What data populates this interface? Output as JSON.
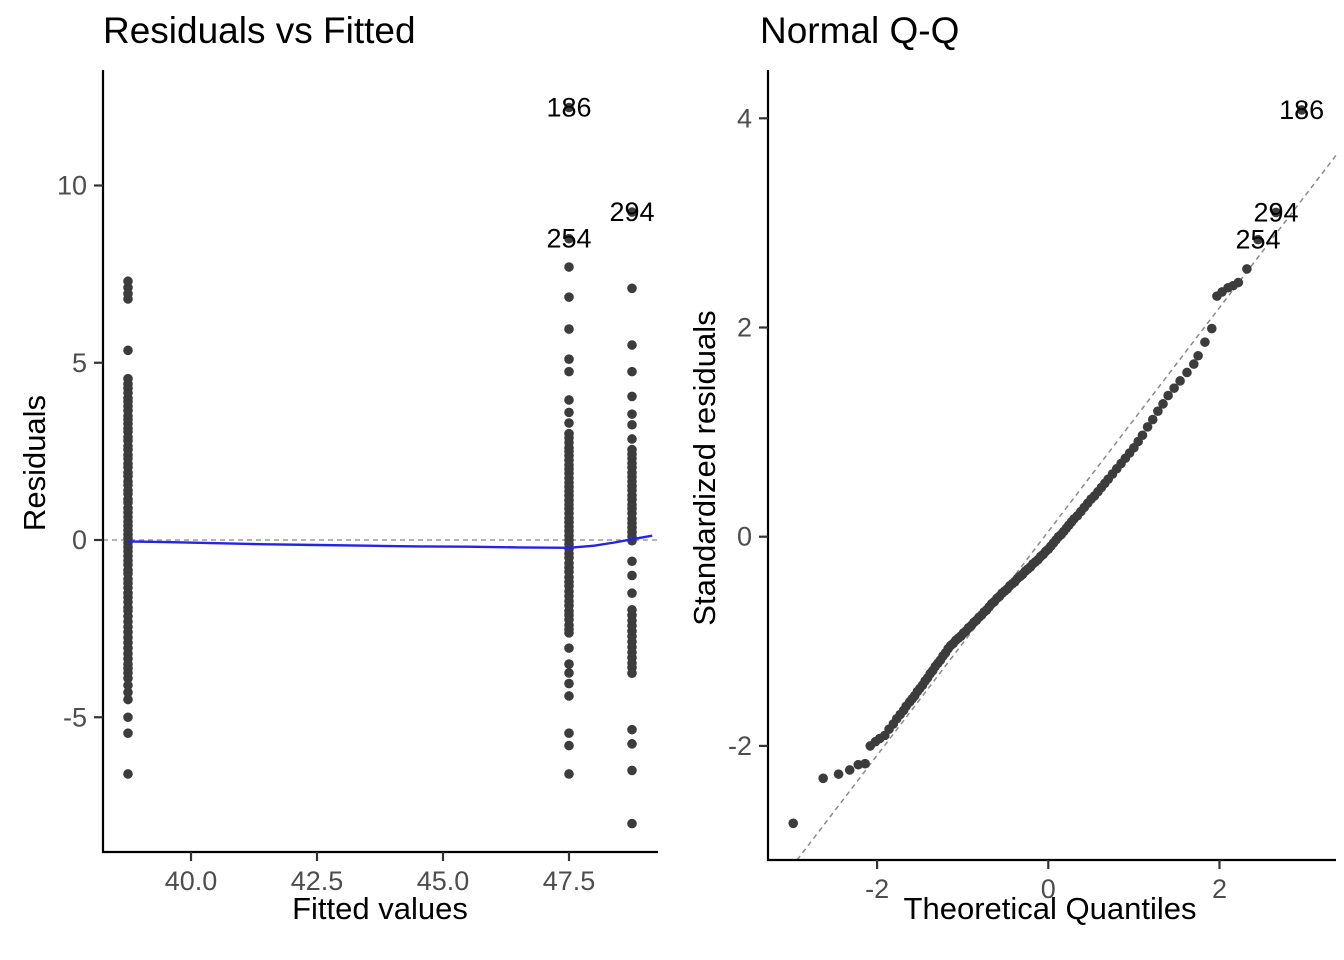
{
  "figure": {
    "background": "#ffffff"
  },
  "colors": {
    "point": "#3c3c3c",
    "smooth_line": "#2424e8",
    "zero_line": "#9b9b9b",
    "ref_line": "#8a8a8a",
    "axis_line": "#000000",
    "tick_label": "#4d4d4d",
    "title": "#000000"
  },
  "chart_data": [
    {
      "type": "scatter",
      "title": "Residuals vs Fitted",
      "xlabel": "Fitted values",
      "ylabel": "Residuals",
      "xlim": [
        38.25,
        49.3
      ],
      "ylim": [
        -8.8,
        13.25
      ],
      "grid": false,
      "legend": "none",
      "x_ticks": [
        {
          "label": "40.0",
          "value": 40.0
        },
        {
          "label": "42.5",
          "value": 42.5
        },
        {
          "label": "45.0",
          "value": 45.0
        },
        {
          "label": "47.5",
          "value": 47.5
        }
      ],
      "y_ticks": [
        {
          "label": "10",
          "value": 10
        },
        {
          "label": "5",
          "value": 5
        },
        {
          "label": "0",
          "value": 0
        },
        {
          "label": "-5",
          "value": -5
        }
      ],
      "zero_line": 0,
      "smooth_line": [
        [
          38.75,
          -0.04
        ],
        [
          39.5,
          -0.06
        ],
        [
          40.5,
          -0.09
        ],
        [
          41.5,
          -0.12
        ],
        [
          42.5,
          -0.14
        ],
        [
          43.5,
          -0.16
        ],
        [
          44.5,
          -0.18
        ],
        [
          45.5,
          -0.19
        ],
        [
          46.5,
          -0.21
        ],
        [
          47.5,
          -0.22
        ],
        [
          48.0,
          -0.16
        ],
        [
          48.4,
          -0.07
        ],
        [
          48.75,
          0.02
        ],
        [
          49.15,
          0.12
        ]
      ],
      "series": [
        {
          "name": "fitted-38.75",
          "fitted": 38.75,
          "residuals": [
            7.3,
            7.12,
            6.95,
            6.8,
            5.35,
            4.55,
            4.4,
            4.28,
            4.15,
            4.0,
            3.9,
            3.78,
            3.65,
            3.5,
            3.4,
            3.28,
            3.15,
            3.05,
            2.9,
            2.8,
            2.65,
            2.55,
            2.4,
            2.3,
            2.15,
            2.05,
            1.9,
            1.8,
            1.65,
            1.55,
            1.4,
            1.3,
            1.15,
            1.05,
            0.9,
            0.78,
            0.65,
            0.52,
            0.4,
            0.28,
            0.15,
            0.05,
            -0.08,
            -0.2,
            -0.32,
            -0.45,
            -0.58,
            -0.7,
            -0.85,
            -0.95,
            -1.1,
            -1.22,
            -1.35,
            -1.5,
            -1.62,
            -1.75,
            -1.9,
            -2.0,
            -2.15,
            -2.3,
            -2.45,
            -2.6,
            -2.75,
            -2.9,
            -3.05,
            -3.2,
            -3.35,
            -3.5,
            -3.62,
            -3.75,
            -3.9,
            -4.1,
            -4.3,
            -4.5,
            -5.0,
            -5.45,
            -6.6
          ]
        },
        {
          "name": "fitted-47.5",
          "fitted": 47.5,
          "residuals": [
            12.2,
            8.5,
            7.7,
            6.85,
            5.95,
            5.1,
            4.75,
            3.95,
            3.6,
            3.3,
            3.0,
            2.88,
            2.75,
            2.6,
            2.5,
            2.38,
            2.25,
            2.12,
            2.0,
            1.88,
            1.75,
            1.62,
            1.5,
            1.38,
            1.25,
            1.12,
            1.0,
            0.88,
            0.75,
            0.62,
            0.5,
            0.38,
            0.25,
            0.12,
            0.0,
            -0.12,
            -0.25,
            -0.38,
            -0.5,
            -0.65,
            -0.78,
            -0.9,
            -1.05,
            -1.18,
            -1.3,
            -1.45,
            -1.58,
            -1.72,
            -1.85,
            -2.0,
            -2.12,
            -2.25,
            -2.4,
            -2.52,
            -2.62,
            -3.05,
            -3.5,
            -3.75,
            -4.05,
            -4.4,
            -5.45,
            -5.8,
            -6.6
          ]
        },
        {
          "name": "fitted-48.75",
          "fitted": 48.75,
          "residuals": [
            9.25,
            7.1,
            5.5,
            4.75,
            4.05,
            3.55,
            3.25,
            2.85,
            2.55,
            2.42,
            2.3,
            2.16,
            2.04,
            1.9,
            1.78,
            1.65,
            1.52,
            1.4,
            1.26,
            1.14,
            1.0,
            0.88,
            0.75,
            0.6,
            0.48,
            0.35,
            0.22,
            0.1,
            -0.02,
            -0.6,
            -1.0,
            -1.5,
            -1.97,
            -2.12,
            -2.27,
            -2.42,
            -2.57,
            -2.72,
            -2.87,
            -3.02,
            -3.17,
            -3.32,
            -3.47,
            -3.6,
            -3.76,
            -5.35,
            -5.75,
            -6.5,
            -8.0
          ]
        }
      ],
      "point_labels": [
        {
          "text": "186",
          "x": 47.5,
          "y": 12.2
        },
        {
          "text": "254",
          "x": 47.5,
          "y": 8.5
        },
        {
          "text": "294",
          "x": 48.75,
          "y": 9.25
        }
      ]
    },
    {
      "type": "scatter",
      "title": "Normal Q-Q",
      "xlabel": "Theoretical Quantiles",
      "ylabel": "Standardized residuals",
      "xlim": [
        -3.27,
        3.36
      ],
      "ylim": [
        -3.09,
        4.46
      ],
      "grid": false,
      "legend": "none",
      "x_ticks": [
        {
          "label": "-2",
          "value": -2
        },
        {
          "label": "0",
          "value": 0
        },
        {
          "label": "2",
          "value": 2
        }
      ],
      "y_ticks": [
        {
          "label": "4",
          "value": 4
        },
        {
          "label": "2",
          "value": 2
        },
        {
          "label": "0",
          "value": 0
        },
        {
          "label": "-2",
          "value": -2
        }
      ],
      "ref_line": {
        "slope": 1.07,
        "intercept": 0.05,
        "style": "dashed"
      },
      "points": [
        [
          -2.98,
          -2.74
        ],
        [
          -2.63,
          -2.31
        ],
        [
          -2.45,
          -2.27
        ],
        [
          -2.32,
          -2.23
        ],
        [
          -2.22,
          -2.18
        ],
        [
          -2.14,
          -2.17
        ],
        [
          -2.08,
          -2.0
        ],
        [
          -2.02,
          -1.96
        ],
        [
          -1.97,
          -1.93
        ],
        [
          -1.91,
          -1.9
        ],
        [
          -1.86,
          -1.84
        ],
        [
          -1.81,
          -1.79
        ],
        [
          -1.77,
          -1.74
        ],
        [
          -1.73,
          -1.7
        ],
        [
          -1.69,
          -1.66
        ],
        [
          -1.66,
          -1.62
        ],
        [
          -1.62,
          -1.58
        ],
        [
          -1.59,
          -1.55
        ],
        [
          -1.56,
          -1.52
        ],
        [
          -1.53,
          -1.48
        ],
        [
          -1.5,
          -1.45
        ],
        [
          -1.47,
          -1.42
        ],
        [
          -1.44,
          -1.38
        ],
        [
          -1.41,
          -1.35
        ],
        [
          -1.38,
          -1.31
        ],
        [
          -1.35,
          -1.28
        ],
        [
          -1.32,
          -1.24
        ],
        [
          -1.29,
          -1.21
        ],
        [
          -1.26,
          -1.18
        ],
        [
          -1.23,
          -1.14
        ],
        [
          -1.2,
          -1.11
        ],
        [
          -1.17,
          -1.07
        ],
        [
          -1.14,
          -1.04
        ],
        [
          -1.11,
          -1.02
        ],
        [
          -1.08,
          -0.99
        ],
        [
          -1.05,
          -0.97
        ],
        [
          -1.02,
          -0.95
        ],
        [
          -0.99,
          -0.92
        ],
        [
          -0.96,
          -0.9
        ],
        [
          -0.93,
          -0.87
        ],
        [
          -0.9,
          -0.85
        ],
        [
          -0.87,
          -0.82
        ],
        [
          -0.84,
          -0.8
        ],
        [
          -0.81,
          -0.77
        ],
        [
          -0.78,
          -0.75
        ],
        [
          -0.75,
          -0.72
        ],
        [
          -0.72,
          -0.7
        ],
        [
          -0.69,
          -0.67
        ],
        [
          -0.66,
          -0.64
        ],
        [
          -0.63,
          -0.62
        ],
        [
          -0.6,
          -0.59
        ],
        [
          -0.57,
          -0.57
        ],
        [
          -0.54,
          -0.54
        ],
        [
          -0.51,
          -0.52
        ],
        [
          -0.48,
          -0.5
        ],
        [
          -0.45,
          -0.47
        ],
        [
          -0.42,
          -0.45
        ],
        [
          -0.39,
          -0.43
        ],
        [
          -0.36,
          -0.4
        ],
        [
          -0.33,
          -0.38
        ],
        [
          -0.3,
          -0.36
        ],
        [
          -0.27,
          -0.33
        ],
        [
          -0.24,
          -0.31
        ],
        [
          -0.21,
          -0.29
        ],
        [
          -0.18,
          -0.26
        ],
        [
          -0.15,
          -0.24
        ],
        [
          -0.12,
          -0.22
        ],
        [
          -0.09,
          -0.19
        ],
        [
          -0.06,
          -0.17
        ],
        [
          -0.03,
          -0.14
        ],
        [
          0.0,
          -0.12
        ],
        [
          0.03,
          -0.09
        ],
        [
          0.06,
          -0.06
        ],
        [
          0.09,
          -0.03
        ],
        [
          0.12,
          0.0
        ],
        [
          0.15,
          0.02
        ],
        [
          0.18,
          0.05
        ],
        [
          0.21,
          0.08
        ],
        [
          0.24,
          0.11
        ],
        [
          0.27,
          0.14
        ],
        [
          0.3,
          0.17
        ],
        [
          0.34,
          0.2
        ],
        [
          0.38,
          0.24
        ],
        [
          0.42,
          0.28
        ],
        [
          0.46,
          0.32
        ],
        [
          0.5,
          0.36
        ],
        [
          0.54,
          0.39
        ],
        [
          0.58,
          0.43
        ],
        [
          0.62,
          0.47
        ],
        [
          0.66,
          0.51
        ],
        [
          0.7,
          0.55
        ],
        [
          0.75,
          0.6
        ],
        [
          0.8,
          0.65
        ],
        [
          0.85,
          0.7
        ],
        [
          0.9,
          0.75
        ],
        [
          0.95,
          0.8
        ],
        [
          1.0,
          0.85
        ],
        [
          1.05,
          0.91
        ],
        [
          1.1,
          0.97
        ],
        [
          1.16,
          1.05
        ],
        [
          1.22,
          1.12
        ],
        [
          1.28,
          1.2
        ],
        [
          1.34,
          1.27
        ],
        [
          1.4,
          1.35
        ],
        [
          1.47,
          1.42
        ],
        [
          1.54,
          1.49
        ],
        [
          1.62,
          1.57
        ],
        [
          1.7,
          1.65
        ],
        [
          1.75,
          1.73
        ],
        [
          1.83,
          1.86
        ],
        [
          1.91,
          1.99
        ],
        [
          1.97,
          2.3
        ],
        [
          2.03,
          2.34
        ],
        [
          2.1,
          2.38
        ],
        [
          2.16,
          2.4
        ],
        [
          2.22,
          2.43
        ],
        [
          2.32,
          2.56
        ],
        [
          2.45,
          2.84
        ],
        [
          2.66,
          3.1
        ],
        [
          2.96,
          4.08
        ]
      ],
      "point_labels": [
        {
          "text": "186",
          "x": 2.96,
          "y": 4.08
        },
        {
          "text": "294",
          "x": 2.66,
          "y": 3.1
        },
        {
          "text": "254",
          "x": 2.45,
          "y": 2.84
        }
      ]
    }
  ]
}
